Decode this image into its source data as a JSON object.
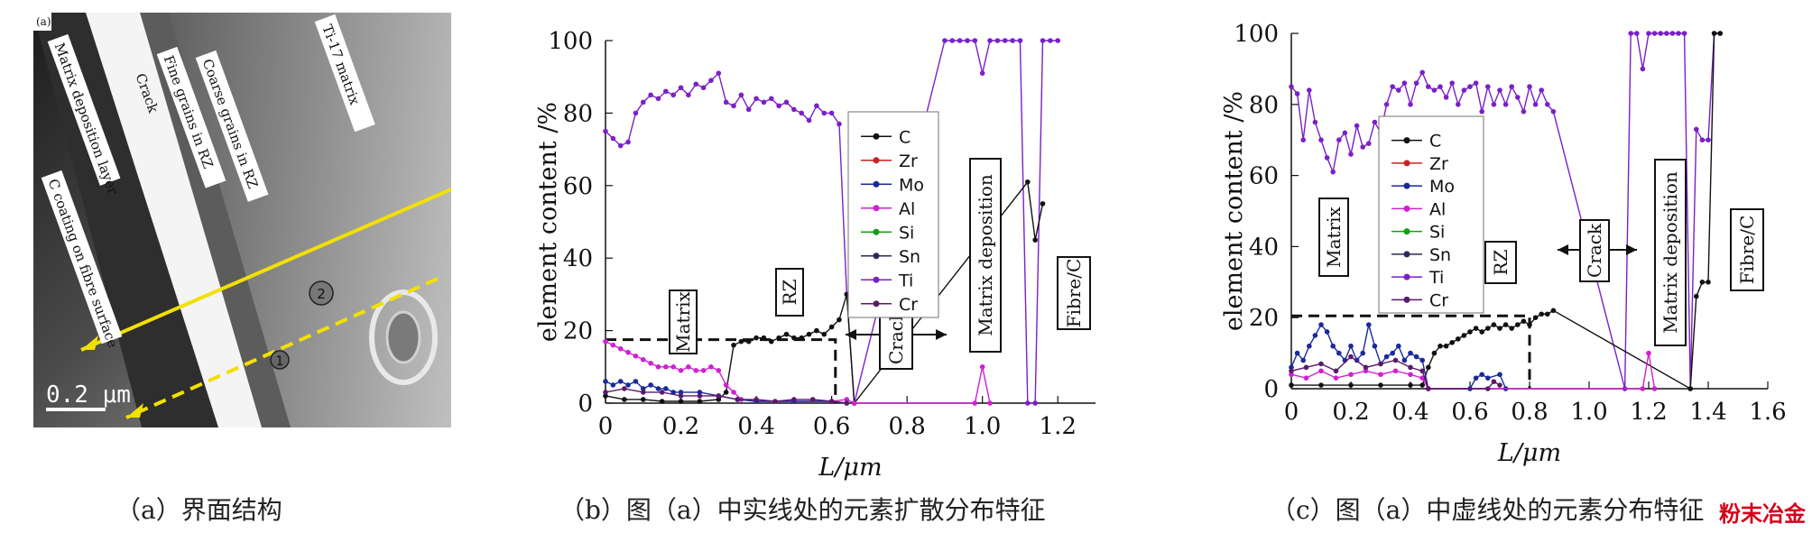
{
  "figure": {
    "panel_a": {
      "caption": "（a）界面结构",
      "corner_label": "(a)",
      "labels": {
        "matrix_deposition_layer": "Matrix deposition layer",
        "crack": "Crack",
        "fine_grains": "Fine grains in RZ",
        "coarse_grains": "Coarse grains in RZ",
        "ti17_matrix": "Ti-17 matrix",
        "c_coating": "C coating on fibre surface",
        "marker_1": "1",
        "marker_2": "2",
        "scale_bar": "0.2 μm"
      },
      "colors": {
        "line": "#f2e000",
        "background": "#8a8a8a"
      }
    },
    "panel_b": {
      "caption": "（b）图（a）中实线处的元素扩散分布特征"
    },
    "panel_c": {
      "caption": "（c）图（a）中虚线处的元素分布特征"
    },
    "watermark": "粉末冶金"
  },
  "chart_data": [
    {
      "type": "line",
      "xlabel": "L/μm",
      "ylabel": "element content /%",
      "xlim": [
        0,
        1.3
      ],
      "ylim": [
        0,
        100
      ],
      "xticks": [
        "0",
        "0.2",
        "0.4",
        "0.6",
        "0.8",
        "1.0",
        "1.2"
      ],
      "yticks": [
        "0",
        "20",
        "40",
        "60",
        "80",
        "100"
      ],
      "legend": [
        "C",
        "Zr",
        "Mo",
        "Al",
        "Si",
        "Sn",
        "Ti",
        "Cr"
      ],
      "legend_placement": "center",
      "colors": {
        "C": "#111111",
        "Zr": "#cc2222",
        "Mo": "#1a2a9a",
        "Al": "#d020d0",
        "Si": "#11a011",
        "Sn": "#2a2a5a",
        "Ti": "#7a20c8",
        "Cr": "#5a1a6a"
      },
      "annotations": [
        "Matrix",
        "RZ",
        "Crack",
        "Matrix deposition",
        "Fibre/C"
      ],
      "dashed_box": {
        "x": [
          0,
          0.61
        ],
        "y": 17.5
      },
      "series": [
        {
          "name": "Ti",
          "x": [
            0,
            0.02,
            0.04,
            0.06,
            0.08,
            0.1,
            0.12,
            0.14,
            0.16,
            0.18,
            0.2,
            0.22,
            0.24,
            0.26,
            0.28,
            0.3,
            0.32,
            0.34,
            0.36,
            0.38,
            0.4,
            0.42,
            0.44,
            0.46,
            0.48,
            0.5,
            0.52,
            0.54,
            0.56,
            0.58,
            0.6,
            0.62,
            0.64,
            0.66,
            0.9,
            0.92,
            0.94,
            0.96,
            0.98,
            1.0,
            1.02,
            1.04,
            1.06,
            1.08,
            1.1,
            1.12,
            1.14,
            1.16,
            1.18,
            1.2
          ],
          "y": [
            75,
            73,
            71,
            72,
            80,
            83,
            85,
            84,
            86,
            85,
            87,
            85,
            88,
            87,
            89,
            91,
            83,
            82,
            85,
            81,
            84,
            83,
            84,
            82,
            83,
            81,
            80,
            78,
            82,
            80,
            80,
            77,
            30,
            0,
            100,
            100,
            100,
            100,
            100,
            91,
            100,
            100,
            100,
            100,
            100,
            0,
            0,
            100,
            100,
            100
          ]
        },
        {
          "name": "C",
          "x": [
            0,
            0.05,
            0.1,
            0.15,
            0.2,
            0.25,
            0.3,
            0.32,
            0.34,
            0.36,
            0.38,
            0.4,
            0.42,
            0.44,
            0.46,
            0.48,
            0.5,
            0.52,
            0.54,
            0.56,
            0.58,
            0.6,
            0.62,
            0.64,
            0.66,
            1.12,
            1.14,
            1.16
          ],
          "y": [
            2,
            1,
            1,
            0.5,
            0.5,
            0.5,
            1,
            3,
            16,
            17,
            17,
            18,
            18,
            17,
            18,
            19,
            18,
            18,
            19,
            20,
            19,
            21,
            23,
            30,
            0,
            61,
            45,
            55
          ]
        },
        {
          "name": "Al",
          "x": [
            0,
            0.02,
            0.04,
            0.06,
            0.08,
            0.1,
            0.12,
            0.14,
            0.16,
            0.18,
            0.2,
            0.22,
            0.24,
            0.26,
            0.28,
            0.3,
            0.32,
            0.34,
            0.36,
            0.4,
            0.5,
            0.6,
            0.64,
            0.66,
            0.98,
            1.0,
            1.02
          ],
          "y": [
            17,
            16,
            15,
            14,
            13,
            12,
            11,
            10,
            10,
            10,
            9,
            10,
            9,
            9,
            10,
            9,
            5,
            3,
            1,
            0.5,
            0.5,
            0.5,
            1,
            0,
            0,
            10,
            0
          ]
        },
        {
          "name": "Mo",
          "x": [
            0,
            0.02,
            0.04,
            0.06,
            0.08,
            0.1,
            0.12,
            0.14,
            0.16,
            0.18,
            0.2,
            0.25,
            0.3,
            0.35,
            0.4,
            0.5,
            0.6,
            0.64
          ],
          "y": [
            6,
            5,
            6,
            5,
            6,
            4,
            5,
            4,
            4,
            3,
            3,
            3,
            2,
            1,
            0.5,
            0.5,
            0.5,
            0
          ]
        },
        {
          "name": "Cr",
          "x": [
            0,
            0.05,
            0.1,
            0.15,
            0.2,
            0.25,
            0.3,
            0.35,
            0.4,
            0.45,
            0.5,
            0.55,
            0.6,
            0.64
          ],
          "y": [
            3,
            4,
            3,
            3,
            2,
            2,
            2,
            1,
            1,
            0.5,
            1,
            1,
            0.5,
            0
          ]
        }
      ]
    },
    {
      "type": "line",
      "xlabel": "L/μm",
      "ylabel": "element content /%",
      "xlim": [
        0,
        1.6
      ],
      "ylim": [
        0,
        100
      ],
      "xticks": [
        "0",
        "0.2",
        "0.4",
        "0.6",
        "0.8",
        "1.0",
        "1.2",
        "1.4",
        "1.6"
      ],
      "yticks": [
        "0",
        "20",
        "40",
        "60",
        "80",
        "100"
      ],
      "legend": [
        "C",
        "Zr",
        "Mo",
        "Al",
        "Si",
        "Sn",
        "Ti",
        "Cr"
      ],
      "legend_placement": "center",
      "colors": {
        "C": "#111111",
        "Zr": "#cc2222",
        "Mo": "#1a2a9a",
        "Al": "#d020d0",
        "Si": "#11a011",
        "Sn": "#2a2a5a",
        "Ti": "#7a20c8",
        "Cr": "#5a1a6a"
      },
      "annotations": [
        "Matrix",
        "RZ",
        "Crack",
        "Matrix deposition",
        "Fibre/C"
      ],
      "dashed_box": {
        "x": [
          0,
          0.8
        ],
        "y": 20.5
      },
      "series": [
        {
          "name": "Ti",
          "x": [
            0,
            0.02,
            0.04,
            0.06,
            0.08,
            0.1,
            0.12,
            0.14,
            0.16,
            0.18,
            0.2,
            0.22,
            0.24,
            0.26,
            0.28,
            0.3,
            0.32,
            0.34,
            0.36,
            0.38,
            0.4,
            0.42,
            0.44,
            0.46,
            0.48,
            0.5,
            0.52,
            0.54,
            0.56,
            0.58,
            0.6,
            0.62,
            0.64,
            0.66,
            0.68,
            0.7,
            0.72,
            0.74,
            0.76,
            0.78,
            0.8,
            0.82,
            0.84,
            0.86,
            0.88,
            1.12,
            1.14,
            1.16,
            1.18,
            1.2,
            1.22,
            1.24,
            1.26,
            1.28,
            1.3,
            1.32,
            1.34,
            1.36,
            1.38,
            1.4,
            1.42,
            1.44
          ],
          "y": [
            85,
            83,
            70,
            84,
            75,
            70,
            65,
            61,
            70,
            72,
            66,
            74,
            68,
            69,
            75,
            72,
            80,
            85,
            84,
            86,
            80,
            86,
            89,
            85,
            84,
            85,
            82,
            86,
            80,
            84,
            85,
            86,
            78,
            85,
            80,
            84,
            80,
            85,
            82,
            78,
            85,
            80,
            84,
            80,
            78,
            0,
            100,
            100,
            90,
            100,
            100,
            100,
            100,
            100,
            100,
            100,
            0,
            73,
            70,
            70,
            100,
            100
          ]
        },
        {
          "name": "C",
          "x": [
            0,
            0.1,
            0.2,
            0.3,
            0.4,
            0.44,
            0.46,
            0.48,
            0.5,
            0.52,
            0.54,
            0.56,
            0.58,
            0.6,
            0.62,
            0.64,
            0.66,
            0.68,
            0.7,
            0.72,
            0.74,
            0.76,
            0.78,
            0.8,
            0.82,
            0.84,
            0.86,
            0.88,
            1.34,
            1.36,
            1.38,
            1.4,
            1.42,
            1.44
          ],
          "y": [
            1,
            1,
            1,
            1,
            1,
            1,
            6,
            10,
            12,
            12,
            13,
            14,
            15,
            16,
            17,
            16,
            17,
            18,
            17,
            18,
            17,
            18,
            19,
            18,
            20,
            21,
            21,
            22,
            0,
            26,
            30,
            30,
            100,
            100
          ]
        },
        {
          "name": "Mo",
          "x": [
            0,
            0.02,
            0.04,
            0.06,
            0.08,
            0.1,
            0.12,
            0.14,
            0.16,
            0.18,
            0.2,
            0.22,
            0.24,
            0.26,
            0.28,
            0.3,
            0.32,
            0.34,
            0.36,
            0.38,
            0.4,
            0.42,
            0.44,
            0.46,
            0.6,
            0.62,
            0.64,
            0.66,
            0.7,
            0.72
          ],
          "y": [
            6,
            10,
            8,
            12,
            15,
            18,
            16,
            12,
            10,
            8,
            12,
            8,
            10,
            18,
            12,
            7,
            9,
            10,
            12,
            8,
            10,
            9,
            8,
            0,
            0,
            3,
            4,
            3,
            4,
            0
          ],
          "note": ""
        },
        {
          "name": "Al",
          "x": [
            0,
            0.05,
            0.1,
            0.15,
            0.2,
            0.25,
            0.3,
            0.35,
            0.4,
            0.44,
            0.46,
            1.18,
            1.2,
            1.22
          ],
          "y": [
            4,
            3,
            5,
            3,
            4,
            5,
            4,
            5,
            4,
            3,
            0,
            0,
            10,
            0
          ]
        },
        {
          "name": "Cr",
          "x": [
            0,
            0.05,
            0.1,
            0.15,
            0.2,
            0.25,
            0.3,
            0.35,
            0.4,
            0.44,
            0.46,
            0.66,
            0.68,
            0.7
          ],
          "y": [
            5,
            6,
            7,
            5,
            9,
            6,
            7,
            8,
            6,
            5,
            0,
            0,
            2,
            1
          ]
        }
      ]
    }
  ]
}
